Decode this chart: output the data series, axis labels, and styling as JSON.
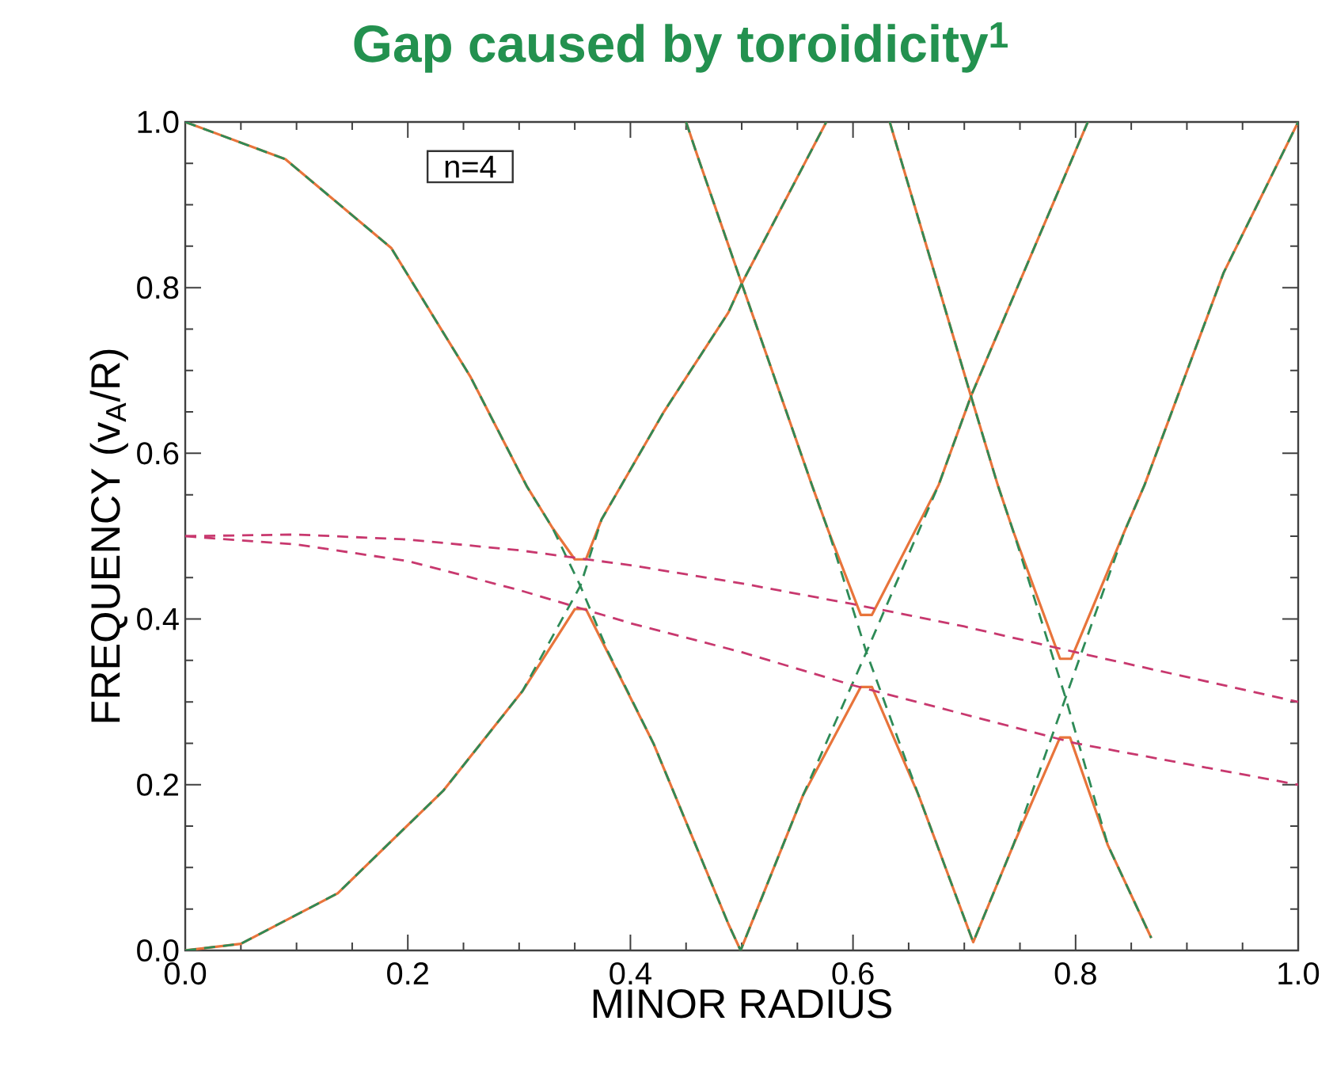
{
  "chart_data": {
    "type": "line",
    "title": "Gap caused by toroidicity$^{1}$",
    "xlabel": "MINOR RADIUS",
    "ylabel": "FREQUENCY (v$_{A}$/R)",
    "annotations": [
      "n=4"
    ],
    "xlim": [
      0,
      1
    ],
    "ylim": [
      0,
      1
    ],
    "xticks": [
      {
        "value": 0,
        "label": "0.0"
      },
      {
        "value": 0.2,
        "label": "0.2"
      },
      {
        "value": 0.4,
        "label": "0.4"
      },
      {
        "value": 0.6,
        "label": "0.6"
      },
      {
        "value": 0.8,
        "label": "0.8"
      },
      {
        "value": 1,
        "label": "1.0"
      }
    ],
    "yticks": [
      {
        "value": 0,
        "label": "0.0"
      },
      {
        "value": 0.2,
        "label": "0.2"
      },
      {
        "value": 0.4,
        "label": "0.4"
      },
      {
        "value": 0.6,
        "label": "0.6"
      },
      {
        "value": 0.8,
        "label": "0.8"
      },
      {
        "value": 1,
        "label": "1.0"
      }
    ],
    "series": [
      {
        "color": "#e8743b",
        "line_style": "solid",
        "x": [
          0,
          0.09,
          0.185,
          0.256,
          0.307,
          0.33,
          0.35,
          0.36,
          0.374,
          0.43,
          0.488,
          0.5,
          0.576
        ],
        "values": [
          1.0,
          0.955,
          0.848,
          0.693,
          0.56,
          0.51,
          0.472,
          0.472,
          0.52,
          0.65,
          0.77,
          0.805,
          1.0
        ]
      },
      {
        "color": "#e8743b",
        "line_style": "solid",
        "x": [
          0,
          0.05,
          0.137,
          0.232,
          0.303,
          0.35,
          0.36,
          0.421,
          0.488,
          0.499,
          0.555,
          0.607,
          0.617,
          0.659,
          0.708,
          0.744,
          0.786,
          0.795,
          0.829,
          0.868
        ],
        "values": [
          0,
          0.008,
          0.069,
          0.193,
          0.313,
          0.412,
          0.412,
          0.249,
          0.032,
          0.0,
          0.187,
          0.318,
          0.318,
          0.187,
          0.01,
          0.127,
          0.257,
          0.257,
          0.127,
          0.015
        ]
      },
      {
        "color": "#e8743b",
        "line_style": "solid",
        "x": [
          0.45,
          0.46,
          0.5,
          0.563,
          0.578,
          0.607,
          0.617,
          0.677,
          0.706,
          0.811
        ],
        "values": [
          1.0,
          0.96,
          0.805,
          0.562,
          0.506,
          0.405,
          0.405,
          0.562,
          0.669,
          1.0
        ]
      },
      {
        "color": "#e8743b",
        "line_style": "solid",
        "x": [
          0.633,
          0.706,
          0.73,
          0.744,
          0.786,
          0.796,
          0.844,
          0.862,
          0.933,
          1.0
        ],
        "values": [
          1.0,
          0.669,
          0.562,
          0.506,
          0.352,
          0.352,
          0.506,
          0.562,
          0.818,
          1.0
        ]
      },
      {
        "color": "#2e8b57",
        "line_style": "dashed",
        "x": [
          0,
          0.09,
          0.185,
          0.256,
          0.307,
          0.33,
          0.355,
          0.38,
          0.421,
          0.488,
          0.499,
          0.555,
          0.612,
          0.677,
          0.706,
          0.811
        ],
        "values": [
          1.0,
          0.955,
          0.848,
          0.693,
          0.56,
          0.51,
          0.44,
          0.36,
          0.249,
          0.032,
          0.0,
          0.187,
          0.36,
          0.562,
          0.669,
          1.0
        ]
      },
      {
        "color": "#2e8b57",
        "line_style": "dashed",
        "x": [
          0,
          0.05,
          0.137,
          0.232,
          0.303,
          0.355,
          0.374,
          0.43,
          0.488,
          0.5,
          0.576
        ],
        "values": [
          0,
          0.008,
          0.069,
          0.193,
          0.313,
          0.44,
          0.52,
          0.65,
          0.77,
          0.805,
          1.0
        ]
      },
      {
        "color": "#2e8b57",
        "line_style": "dashed",
        "x": [
          0.45,
          0.46,
          0.5,
          0.563,
          0.578,
          0.612,
          0.659,
          0.708,
          0.744,
          0.791,
          0.844,
          0.862,
          0.933,
          1.0
        ],
        "values": [
          1.0,
          0.96,
          0.805,
          0.562,
          0.506,
          0.36,
          0.187,
          0.01,
          0.127,
          0.305,
          0.506,
          0.562,
          0.818,
          1.0
        ]
      },
      {
        "color": "#2e8b57",
        "line_style": "dashed",
        "x": [
          0.633,
          0.706,
          0.73,
          0.744,
          0.791,
          0.829,
          0.868
        ],
        "values": [
          1.0,
          0.669,
          0.562,
          0.506,
          0.305,
          0.127,
          0.015
        ]
      },
      {
        "color": "#c8386e",
        "line_style": "dashed",
        "x": [
          0,
          0.1,
          0.2,
          0.3,
          0.4,
          0.5,
          0.6,
          0.7,
          0.8,
          0.9,
          1.0
        ],
        "values": [
          0.5,
          0.502,
          0.496,
          0.483,
          0.465,
          0.443,
          0.418,
          0.391,
          0.36,
          0.33,
          0.3
        ]
      },
      {
        "color": "#c8386e",
        "line_style": "dashed",
        "x": [
          0,
          0.1,
          0.2,
          0.3,
          0.4,
          0.5,
          0.6,
          0.7,
          0.8,
          0.9,
          1.0
        ],
        "values": [
          0.5,
          0.49,
          0.47,
          0.435,
          0.395,
          0.36,
          0.32,
          0.285,
          0.25,
          0.225,
          0.2
        ]
      }
    ]
  }
}
